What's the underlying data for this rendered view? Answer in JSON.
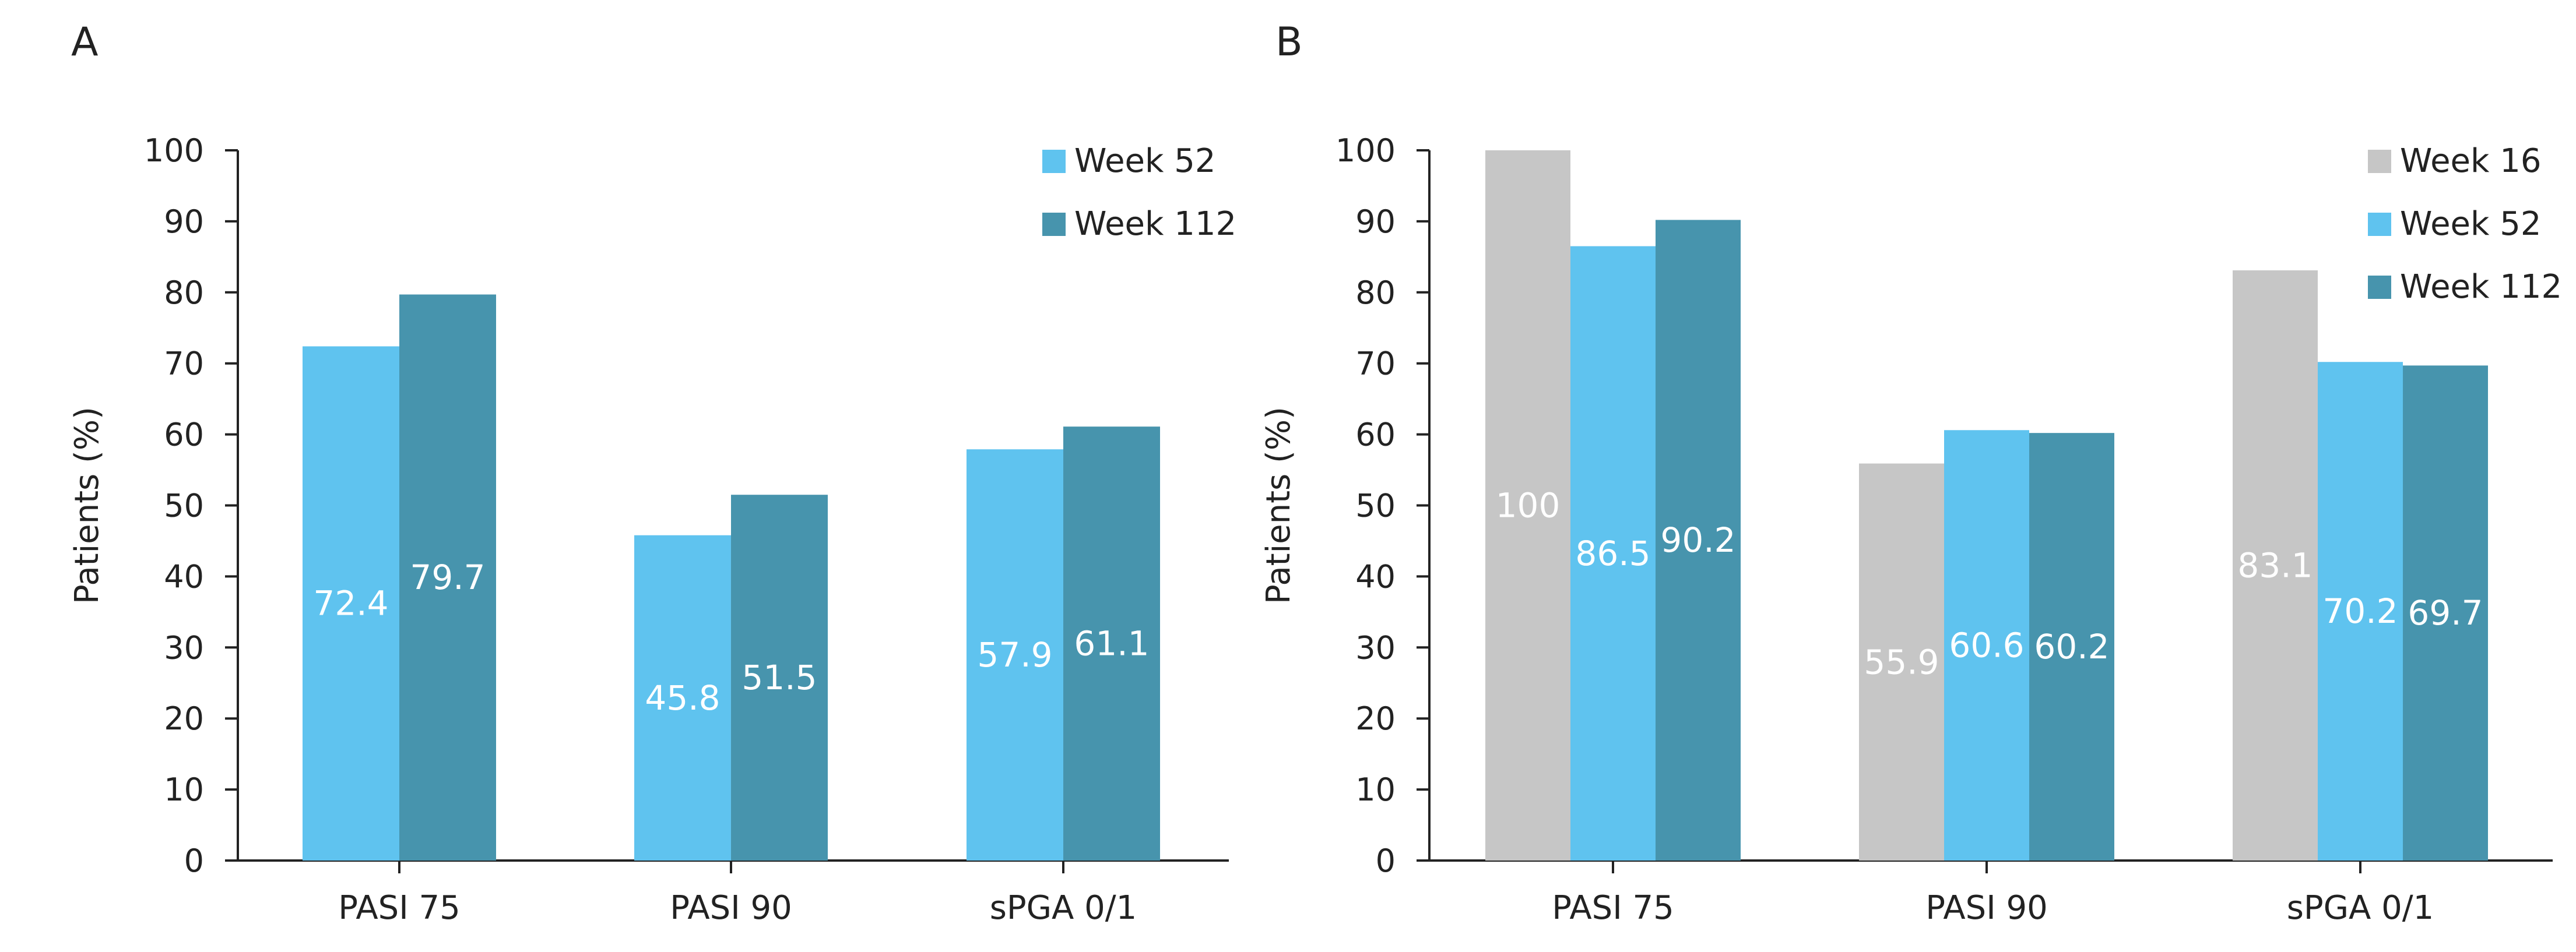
{
  "colors": {
    "week16": "#c6c6c6",
    "week52": "#5fc3ef",
    "week112": "#4794ad",
    "axis": "#222222",
    "text": "#222222",
    "bar_label": "#ffffff"
  },
  "chart_data": [
    {
      "panel_label": "A",
      "type": "bar",
      "categories": [
        "PASI 75",
        "PASI 90",
        "sPGA 0/1"
      ],
      "series": [
        {
          "name": "Week 52",
          "color": "#5fc3ef",
          "values": [
            72.4,
            45.8,
            57.9
          ]
        },
        {
          "name": "Week 112",
          "color": "#4794ad",
          "values": [
            79.7,
            51.5,
            61.1
          ]
        }
      ],
      "value_labels": [
        [
          "72.4",
          "45.8",
          "57.9"
        ],
        [
          "79.7",
          "51.5",
          "61.1"
        ]
      ],
      "xlabel": "",
      "ylabel": "Patients (%)",
      "ylim": [
        0,
        100
      ],
      "yticks": [
        "0",
        "10",
        "20",
        "30",
        "40",
        "50",
        "60",
        "70",
        "80",
        "90",
        "100"
      ],
      "grid": false,
      "legend": "top-right"
    },
    {
      "panel_label": "B",
      "type": "bar",
      "categories": [
        "PASI 75",
        "PASI 90",
        "sPGA 0/1"
      ],
      "series": [
        {
          "name": "Week 16",
          "color": "#c6c6c6",
          "values": [
            100,
            55.9,
            83.1
          ]
        },
        {
          "name": "Week 52",
          "color": "#5fc3ef",
          "values": [
            86.5,
            60.6,
            70.2
          ]
        },
        {
          "name": "Week 112",
          "color": "#4794ad",
          "values": [
            90.2,
            60.2,
            69.7
          ]
        }
      ],
      "value_labels": [
        [
          "100",
          "55.9",
          "83.1"
        ],
        [
          "86.5",
          "60.6",
          "70.2"
        ],
        [
          "90.2",
          "60.2",
          "69.7"
        ]
      ],
      "xlabel": "",
      "ylabel": "Patients (%)",
      "ylim": [
        0,
        100
      ],
      "yticks": [
        "0",
        "10",
        "20",
        "30",
        "40",
        "50",
        "60",
        "70",
        "80",
        "90",
        "100"
      ],
      "grid": false,
      "legend": "top-right"
    }
  ]
}
